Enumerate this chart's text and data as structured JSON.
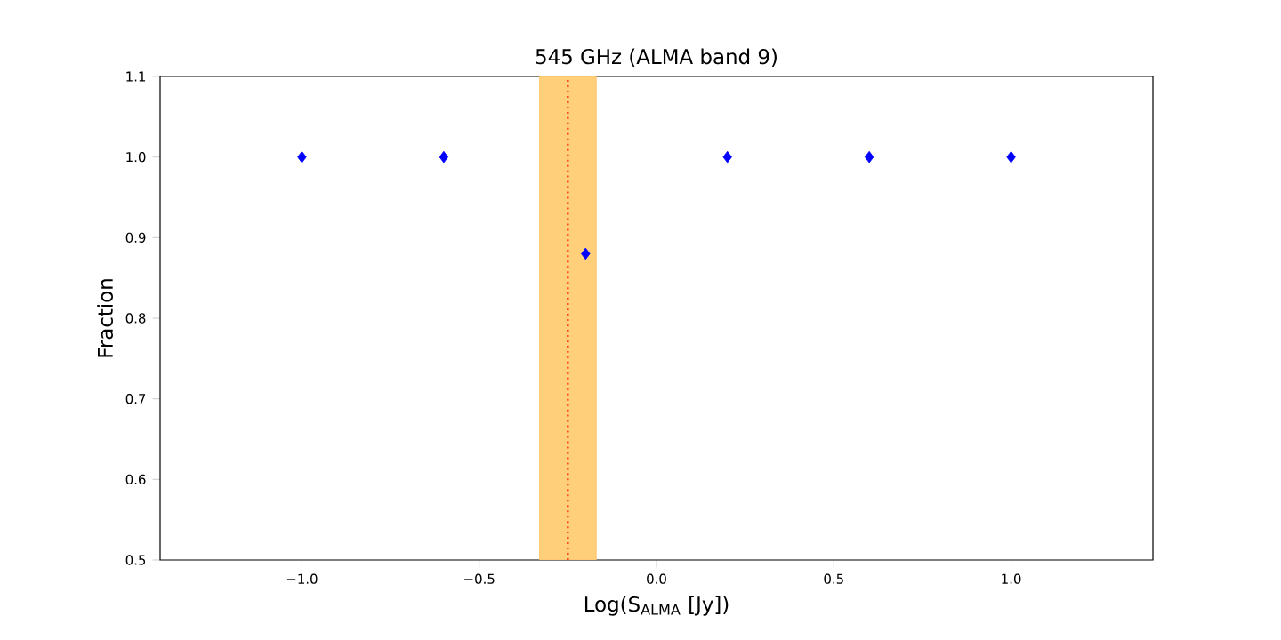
{
  "chart_data": {
    "type": "scatter",
    "title": "545 GHz  (ALMA band 9)",
    "xlabel": "Log(S$_{ALMA}$ [Jy])",
    "ylabel": "Fraction",
    "x": [
      -1.0,
      -0.6,
      -0.2,
      0.2,
      0.6,
      1.0
    ],
    "values": [
      1.0,
      1.0,
      0.88,
      1.0,
      1.0,
      1.0
    ],
    "color": "#0000ff",
    "marker": "diamond",
    "xlim": [
      -1.4,
      1.4
    ],
    "ylim": [
      0.5,
      1.1
    ],
    "xticks": [
      {
        "value": -1.0,
        "label": "−1.0"
      },
      {
        "value": -0.5,
        "label": "−0.5"
      },
      {
        "value": 0.0,
        "label": "0.0"
      },
      {
        "value": 0.5,
        "label": "0.5"
      },
      {
        "value": 1.0,
        "label": "1.0"
      }
    ],
    "yticks": [
      {
        "value": 0.5,
        "label": "0.5"
      },
      {
        "value": 0.6,
        "label": "0.6"
      },
      {
        "value": 0.7,
        "label": "0.7"
      },
      {
        "value": 0.8,
        "label": "0.8"
      },
      {
        "value": 0.9,
        "label": "0.9"
      },
      {
        "value": 1.0,
        "label": "1.0"
      },
      {
        "value": 1.1,
        "label": "1.1"
      }
    ],
    "bands": [
      {
        "axis": "x",
        "from": -0.33,
        "to": -0.17,
        "color": "#ffcf7a"
      }
    ],
    "ref_lines": [
      {
        "axis": "x",
        "value": -0.25,
        "color": "#ff0000",
        "line_style": "dotted"
      }
    ],
    "grid": false
  }
}
